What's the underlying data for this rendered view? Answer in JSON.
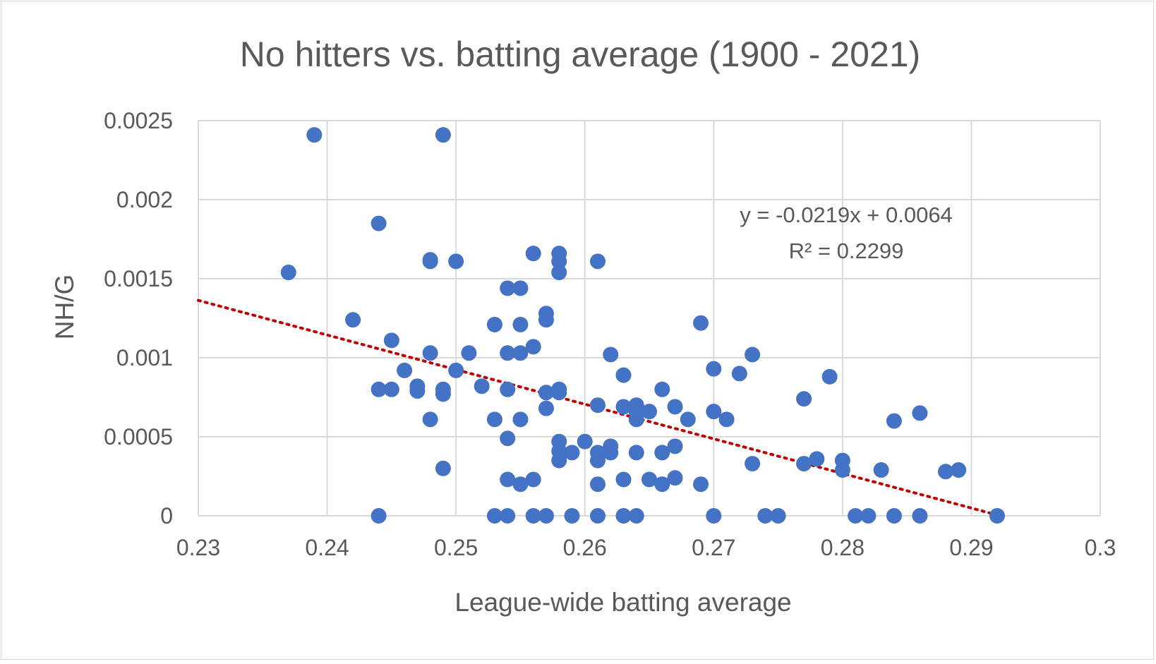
{
  "chart_data": {
    "type": "scatter",
    "title": "No hitters vs. batting average (1900 - 2021)",
    "xlabel": "League-wide batting average",
    "ylabel": "NH/G",
    "xlim": [
      0.23,
      0.3
    ],
    "ylim": [
      0,
      0.0025
    ],
    "x_ticks": [
      "0.23",
      "0.24",
      "0.25",
      "0.26",
      "0.27",
      "0.28",
      "0.29",
      "0.3"
    ],
    "y_ticks": [
      "0",
      "0.0005",
      "0.001",
      "0.0015",
      "0.002",
      "0.0025"
    ],
    "x_tick_values": [
      0.23,
      0.24,
      0.25,
      0.26,
      0.27,
      0.28,
      0.29,
      0.3
    ],
    "y_tick_values": [
      0,
      0.0005,
      0.001,
      0.0015,
      0.002,
      0.0025
    ],
    "grid": true,
    "marker_color": "#4472c4",
    "trendline": {
      "type": "linear",
      "slope": -0.0219,
      "intercept": 0.0064,
      "color": "#c00000",
      "style": "dotted",
      "equation": "y = -0.0219x + 0.0064",
      "r_squared": "R² = 0.2299"
    },
    "points": [
      [
        0.239,
        0.00241
      ],
      [
        0.249,
        0.00241
      ],
      [
        0.244,
        0.00185
      ],
      [
        0.237,
        0.00154
      ],
      [
        0.248,
        0.00162
      ],
      [
        0.248,
        0.00161
      ],
      [
        0.25,
        0.00161
      ],
      [
        0.256,
        0.00166
      ],
      [
        0.258,
        0.00166
      ],
      [
        0.258,
        0.00161
      ],
      [
        0.258,
        0.00154
      ],
      [
        0.261,
        0.00161
      ],
      [
        0.254,
        0.00144
      ],
      [
        0.255,
        0.00144
      ],
      [
        0.257,
        0.00128
      ],
      [
        0.257,
        0.00124
      ],
      [
        0.242,
        0.00124
      ],
      [
        0.253,
        0.00121
      ],
      [
        0.255,
        0.00121
      ],
      [
        0.269,
        0.00122
      ],
      [
        0.245,
        0.00111
      ],
      [
        0.256,
        0.00107
      ],
      [
        0.248,
        0.00103
      ],
      [
        0.251,
        0.00103
      ],
      [
        0.254,
        0.00103
      ],
      [
        0.255,
        0.00103
      ],
      [
        0.262,
        0.00102
      ],
      [
        0.273,
        0.00102
      ],
      [
        0.246,
        0.00092
      ],
      [
        0.25,
        0.00092
      ],
      [
        0.263,
        0.00089
      ],
      [
        0.27,
        0.00093
      ],
      [
        0.272,
        0.0009
      ],
      [
        0.279,
        0.00088
      ],
      [
        0.244,
        0.0008
      ],
      [
        0.245,
        0.0008
      ],
      [
        0.247,
        0.00082
      ],
      [
        0.247,
        0.00079
      ],
      [
        0.249,
        0.0008
      ],
      [
        0.249,
        0.00077
      ],
      [
        0.252,
        0.00082
      ],
      [
        0.254,
        0.0008
      ],
      [
        0.257,
        0.00078
      ],
      [
        0.258,
        0.0008
      ],
      [
        0.258,
        0.00078
      ],
      [
        0.266,
        0.0008
      ],
      [
        0.257,
        0.00068
      ],
      [
        0.261,
        0.0007
      ],
      [
        0.263,
        0.00069
      ],
      [
        0.264,
        0.0007
      ],
      [
        0.264,
        0.00066
      ],
      [
        0.265,
        0.00066
      ],
      [
        0.267,
        0.00069
      ],
      [
        0.27,
        0.00066
      ],
      [
        0.277,
        0.00074
      ],
      [
        0.248,
        0.00061
      ],
      [
        0.253,
        0.00061
      ],
      [
        0.255,
        0.00061
      ],
      [
        0.264,
        0.00061
      ],
      [
        0.268,
        0.00061
      ],
      [
        0.271,
        0.00061
      ],
      [
        0.284,
        0.0006
      ],
      [
        0.286,
        0.00065
      ],
      [
        0.254,
        0.00049
      ],
      [
        0.258,
        0.00047
      ],
      [
        0.26,
        0.00047
      ],
      [
        0.258,
        0.00041
      ],
      [
        0.259,
        0.0004
      ],
      [
        0.261,
        0.0004
      ],
      [
        0.262,
        0.00044
      ],
      [
        0.262,
        0.0004
      ],
      [
        0.264,
        0.0004
      ],
      [
        0.266,
        0.0004
      ],
      [
        0.267,
        0.00044
      ],
      [
        0.258,
        0.00035
      ],
      [
        0.261,
        0.00035
      ],
      [
        0.273,
        0.00033
      ],
      [
        0.277,
        0.00033
      ],
      [
        0.278,
        0.00036
      ],
      [
        0.28,
        0.00035
      ],
      [
        0.28,
        0.00029
      ],
      [
        0.283,
        0.00029
      ],
      [
        0.288,
        0.00028
      ],
      [
        0.289,
        0.00029
      ],
      [
        0.249,
        0.0003
      ],
      [
        0.254,
        0.00023
      ],
      [
        0.255,
        0.0002
      ],
      [
        0.256,
        0.00023
      ],
      [
        0.261,
        0.0002
      ],
      [
        0.263,
        0.00023
      ],
      [
        0.265,
        0.00023
      ],
      [
        0.266,
        0.0002
      ],
      [
        0.267,
        0.00024
      ],
      [
        0.269,
        0.0002
      ],
      [
        0.244,
        0
      ],
      [
        0.253,
        0
      ],
      [
        0.254,
        0
      ],
      [
        0.256,
        0
      ],
      [
        0.257,
        0
      ],
      [
        0.259,
        0
      ],
      [
        0.261,
        0
      ],
      [
        0.263,
        0
      ],
      [
        0.264,
        0
      ],
      [
        0.27,
        0
      ],
      [
        0.274,
        0
      ],
      [
        0.275,
        0
      ],
      [
        0.281,
        0
      ],
      [
        0.282,
        0
      ],
      [
        0.284,
        0
      ],
      [
        0.286,
        0
      ],
      [
        0.292,
        0
      ]
    ]
  }
}
